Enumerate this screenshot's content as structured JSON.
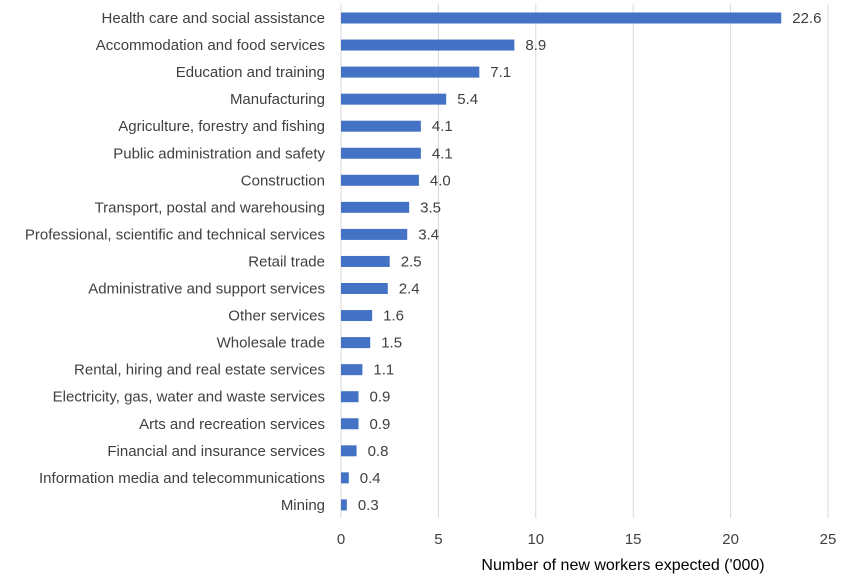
{
  "chart_data": {
    "type": "bar",
    "orientation": "horizontal",
    "categories": [
      "Health care and social assistance",
      "Accommodation and food services",
      "Education and training",
      "Manufacturing",
      "Agriculture, forestry and fishing",
      "Public administration and safety",
      "Construction",
      "Transport, postal and warehousing",
      "Professional, scientific and technical services",
      "Retail trade",
      "Administrative and support services",
      "Other services",
      "Wholesale trade",
      "Rental, hiring and real estate services",
      "Electricity, gas, water and waste services",
      "Arts and recreation services",
      "Financial and insurance services",
      "Information media and telecommunications",
      "Mining"
    ],
    "values": [
      22.6,
      8.9,
      7.1,
      5.4,
      4.1,
      4.1,
      4.0,
      3.5,
      3.4,
      2.5,
      2.4,
      1.6,
      1.5,
      1.1,
      0.9,
      0.9,
      0.8,
      0.4,
      0.3
    ],
    "value_labels": [
      "22.6",
      "8.9",
      "7.1",
      "5.4",
      "4.1",
      "4.1",
      "4.0",
      "3.5",
      "3.4",
      "2.5",
      "2.4",
      "1.6",
      "1.5",
      "1.1",
      "0.9",
      "0.9",
      "0.8",
      "0.4",
      "0.3"
    ],
    "x_ticks": [
      "0",
      "5",
      "10",
      "15",
      "20",
      "25"
    ],
    "xlim": [
      0,
      25
    ],
    "xlabel": "Number of new workers expected ('000)",
    "ylabel": "",
    "title": "",
    "grid": "vertical",
    "legend": "none",
    "bar_color": "#4472c4",
    "grid_color": "#d9d9d9",
    "text_color": "#404040"
  }
}
